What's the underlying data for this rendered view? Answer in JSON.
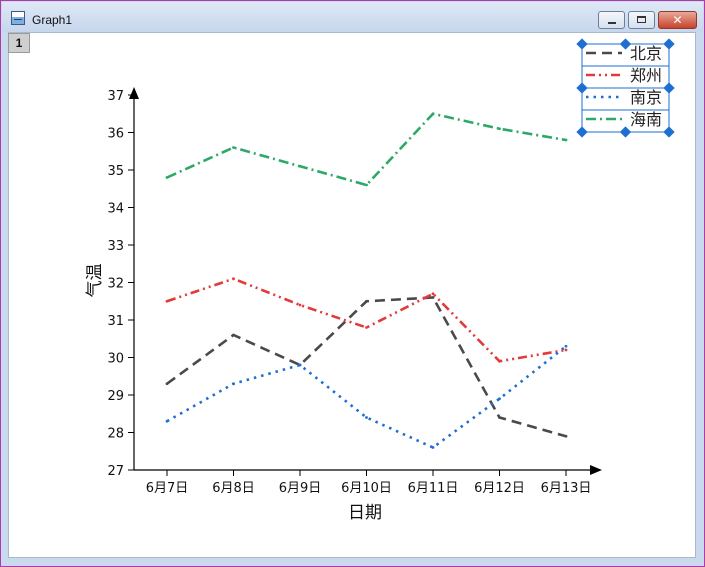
{
  "window": {
    "title": "Graph1",
    "layer_badge": "1",
    "close_glyph": "✕"
  },
  "colors": {
    "series": [
      "#4a4a4a",
      "#e23a3a",
      "#1e6fd0",
      "#2ea868"
    ],
    "handle": "#1e6fd0"
  },
  "chart_data": {
    "type": "line",
    "xlabel": "日期",
    "ylabel": "气温",
    "categories": [
      "6月7日",
      "6月8日",
      "6月9日",
      "6月10日",
      "6月11日",
      "6月12日",
      "6月13日"
    ],
    "ylim": [
      27,
      37
    ],
    "yticks": [
      27,
      28,
      29,
      30,
      31,
      32,
      33,
      34,
      35,
      36,
      37
    ],
    "legend_position": "top-right",
    "grid": false,
    "series": [
      {
        "name": "北京",
        "values": [
          29.3,
          30.6,
          29.8,
          31.5,
          31.6,
          28.4,
          27.9
        ],
        "dash": "dash"
      },
      {
        "name": "郑州",
        "values": [
          31.5,
          32.1,
          31.4,
          30.8,
          31.7,
          29.9,
          30.2
        ],
        "dash": "dash-dot-dot"
      },
      {
        "name": "南京",
        "values": [
          28.3,
          29.3,
          29.8,
          28.4,
          27.6,
          28.9,
          30.3
        ],
        "dash": "dot"
      },
      {
        "name": "海南",
        "values": [
          34.8,
          35.6,
          35.1,
          34.6,
          36.5,
          36.1,
          35.8
        ],
        "dash": "dash-dot"
      }
    ]
  }
}
